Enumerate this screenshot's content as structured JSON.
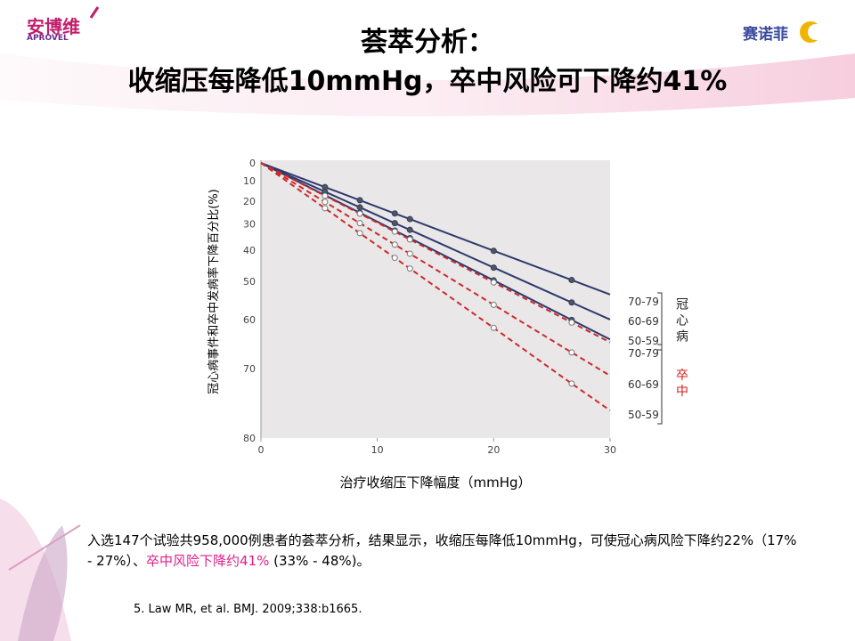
{
  "header": {
    "logo_left": "安博维",
    "logo_left_sub": "APROVEL",
    "logo_right": "赛诺菲",
    "title_line1": "荟萃分析：",
    "title_line2": "收缩压每降低10mmHg，卒中风险可下降约41%"
  },
  "chart_data": {
    "type": "line",
    "y_label": "冠心病事件和卒中发病率下降百分比(%)",
    "x_label": "治疗收缩压下降幅度（mmHg）",
    "yscale": "log-reduction",
    "y_inverted": true,
    "x": [
      0,
      5.5,
      8.5,
      11.5,
      12.8,
      20,
      26.7,
      30
    ],
    "xlim": [
      0,
      30
    ],
    "xticks": [
      0,
      10,
      20,
      30
    ],
    "ylim": [
      0,
      80
    ],
    "yticks": [
      0,
      10,
      20,
      30,
      40,
      50,
      60,
      70,
      80
    ],
    "groups": [
      {
        "label": "冠心病",
        "color": "#222222"
      },
      {
        "label": "卒中",
        "color": "#d42020"
      }
    ],
    "series": [
      {
        "name": "70-79",
        "color": "#2e3a6e",
        "dashed": false,
        "values": [
          0,
          13.2,
          19.6,
          25.6,
          28.0,
          40.2,
          49.6,
          53.7
        ]
      },
      {
        "name": "60-69",
        "color": "#2e3a6e",
        "dashed": false,
        "values": [
          0,
          15.5,
          22.9,
          29.7,
          32.4,
          45.8,
          55.8,
          60.0
        ]
      },
      {
        "name": "50-59",
        "color": "#2e3a6e",
        "dashed": false,
        "values": [
          0,
          17.2,
          25.3,
          32.7,
          35.6,
          49.7,
          60.1,
          64.4
        ]
      },
      {
        "name": "70-79",
        "color": "#cc2a2a",
        "dashed": true,
        "values": [
          0,
          17.5,
          25.7,
          33.1,
          36.1,
          50.3,
          60.7,
          65.0
        ]
      },
      {
        "name": "60-69",
        "color": "#cc2a2a",
        "dashed": true,
        "values": [
          0,
          20.4,
          29.7,
          38.0,
          41.2,
          56.4,
          67.0,
          71.2
        ]
      },
      {
        "name": "50-59",
        "color": "#cc2a2a",
        "dashed": true,
        "values": [
          0,
          23.3,
          33.7,
          42.6,
          46.1,
          61.9,
          72.5,
          76.5
        ]
      }
    ]
  },
  "body": {
    "parts": [
      "入选147个试验共958,000例患者的荟萃分析，结果显示，收缩压每降低10mmHg，可使冠心病风险下降约22%（17% - 27%）、",
      "卒中风险下降约41%",
      " (33% - 48%)。"
    ]
  },
  "footnote": "5. Law MR, et al. BMJ. 2009;338:b1665."
}
